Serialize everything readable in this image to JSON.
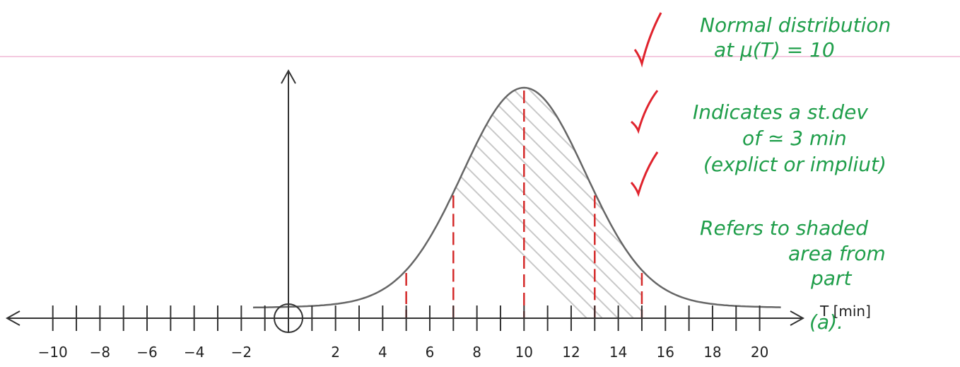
{
  "axis": {
    "label": "T [min]",
    "tick_labels": [
      "−10",
      "−8",
      "−6",
      "−4",
      "−2",
      "2",
      "4",
      "6",
      "8",
      "10",
      "12",
      "14",
      "16",
      "18",
      "20"
    ]
  },
  "annotations": [
    {
      "lines": [
        "Normal distribution",
        "at μ(T) = 10"
      ]
    },
    {
      "lines": [
        "Indicates a st.dev",
        "of ≃ 3 min",
        "(explict or impliut)"
      ]
    },
    {
      "lines": [
        "Refers to shaded",
        "area from",
        "part",
        "(a)."
      ]
    }
  ]
}
